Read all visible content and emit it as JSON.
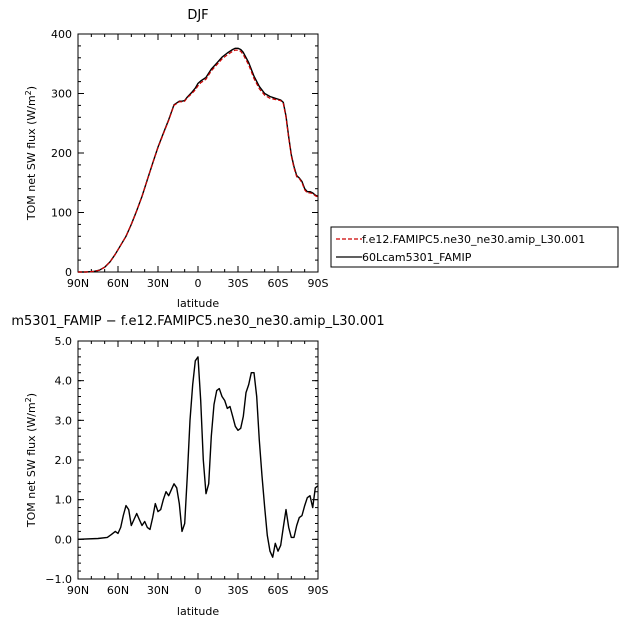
{
  "colors": {
    "series_red": "#cc0000",
    "series_black": "#000000"
  },
  "chart_data": [
    {
      "type": "line",
      "title": "DJF",
      "xlabel": "latitude",
      "ylabel": "TOM net SW flux (W/m²)",
      "xlim": [
        90,
        -90
      ],
      "ylim": [
        0,
        400
      ],
      "xticks": [
        90,
        60,
        30,
        0,
        -30,
        -60,
        -90
      ],
      "xtick_labels": [
        "90N",
        "60N",
        "30N",
        "0",
        "30S",
        "60S",
        "90S"
      ],
      "yticks": [
        0,
        100,
        200,
        300,
        400
      ],
      "ytick_labels": [
        "0",
        "100",
        "200",
        "300",
        "400"
      ],
      "grid": false,
      "legend_position": "right",
      "legend": [
        {
          "name": "f.e12.FAMIPC5.ne30_ne30.amip_L30.001",
          "style": "dashed",
          "color": "#cc0000"
        },
        {
          "name": "60Lcam5301_FAMIP",
          "style": "solid",
          "color": "#000000"
        }
      ],
      "series": [
        {
          "name": "f.e12.FAMIPC5.ne30_ne30.amip_L30.001",
          "x": [
            90,
            84,
            78,
            74,
            70,
            66,
            62,
            58,
            54,
            50,
            46,
            42,
            38,
            34,
            30,
            26,
            22,
            18,
            14,
            12,
            10,
            8,
            5,
            2,
            0,
            -2,
            -6,
            -10,
            -14,
            -18,
            -22,
            -26,
            -28,
            -30,
            -32,
            -34,
            -38,
            -42,
            -46,
            -50,
            -54,
            -58,
            -62,
            -64,
            -66,
            -68,
            -70,
            -72,
            -74,
            -76,
            -78,
            -80,
            -82,
            -84,
            -86,
            -88,
            -90
          ],
          "y": [
            0,
            0,
            1,
            3,
            8,
            17,
            30,
            45,
            60,
            80,
            103,
            127,
            155,
            183,
            209,
            232,
            255,
            280,
            286,
            286,
            287,
            293,
            299,
            306,
            313,
            318,
            324,
            338,
            348,
            358,
            365,
            371,
            373,
            373,
            371,
            365,
            348,
            325,
            308,
            297,
            292,
            290,
            288,
            283,
            260,
            225,
            195,
            175,
            160,
            157,
            150,
            138,
            133,
            133,
            132,
            128,
            126
          ]
        },
        {
          "name": "60Lcam5301_FAMIP",
          "x": [
            90,
            84,
            78,
            74,
            70,
            66,
            62,
            58,
            54,
            50,
            46,
            42,
            38,
            34,
            30,
            26,
            22,
            18,
            14,
            12,
            10,
            8,
            5,
            2,
            0,
            -2,
            -6,
            -10,
            -14,
            -18,
            -22,
            -26,
            -28,
            -30,
            -32,
            -34,
            -38,
            -42,
            -46,
            -50,
            -54,
            -58,
            -62,
            -64,
            -66,
            -68,
            -70,
            -72,
            -74,
            -76,
            -78,
            -80,
            -82,
            -84,
            -86,
            -88,
            -90
          ],
          "y": [
            0,
            0,
            1,
            3,
            8,
            17,
            30,
            45,
            60,
            80,
            103,
            127,
            155,
            183,
            210,
            233,
            256,
            281,
            287,
            287,
            288,
            294,
            301,
            309,
            317,
            321,
            327,
            341,
            351,
            361,
            368,
            374,
            376,
            376,
            374,
            369,
            352,
            329,
            312,
            300,
            295,
            292,
            289,
            285,
            262,
            227,
            197,
            177,
            162,
            158,
            152,
            140,
            135,
            135,
            133,
            129,
            127
          ]
        }
      ]
    },
    {
      "type": "line",
      "title": "m5301_FAMIP − f.e12.FAMIPC5.ne30_ne30.amip_L30.001",
      "xlabel": "latitude",
      "ylabel": "TOM net SW flux (W/m²)",
      "xlim": [
        90,
        -90
      ],
      "ylim": [
        -1,
        5
      ],
      "xticks": [
        90,
        60,
        30,
        0,
        -30,
        -60,
        -90
      ],
      "xtick_labels": [
        "90N",
        "60N",
        "30N",
        "0",
        "30S",
        "60S",
        "90S"
      ],
      "yticks": [
        -1,
        0,
        1,
        2,
        3,
        4,
        5
      ],
      "ytick_labels": [
        "−1.0",
        "0.0",
        "1.0",
        "2.0",
        "3.0",
        "4.0",
        "5.0"
      ],
      "grid": false,
      "series": [
        {
          "x": [
            90,
            75,
            68,
            65,
            62,
            60,
            58,
            56,
            54,
            52,
            50,
            48,
            46,
            44,
            42,
            40,
            38,
            36,
            34,
            32,
            30,
            28,
            26,
            24,
            22,
            20,
            18,
            16,
            14,
            12,
            10,
            8,
            6,
            4,
            2,
            0,
            -2,
            -4,
            -6,
            -8,
            -10,
            -12,
            -14,
            -16,
            -18,
            -20,
            -22,
            -24,
            -26,
            -28,
            -30,
            -32,
            -34,
            -36,
            -38,
            -40,
            -42,
            -44,
            -46,
            -48,
            -50,
            -52,
            -54,
            -56,
            -58,
            -60,
            -62,
            -64,
            -66,
            -68,
            -70,
            -72,
            -74,
            -76,
            -78,
            -80,
            -82,
            -84,
            -86,
            -88,
            -90
          ],
          "y": [
            0.0,
            0.02,
            0.05,
            0.12,
            0.2,
            0.15,
            0.3,
            0.6,
            0.85,
            0.75,
            0.35,
            0.5,
            0.65,
            0.5,
            0.35,
            0.45,
            0.3,
            0.25,
            0.55,
            0.9,
            0.7,
            0.75,
            1.0,
            1.2,
            1.1,
            1.25,
            1.4,
            1.3,
            0.9,
            0.2,
            0.4,
            1.6,
            3.0,
            3.9,
            4.5,
            4.6,
            3.5,
            2.0,
            1.15,
            1.4,
            2.6,
            3.4,
            3.75,
            3.8,
            3.6,
            3.5,
            3.3,
            3.35,
            3.1,
            2.85,
            2.75,
            2.8,
            3.1,
            3.7,
            3.9,
            4.2,
            4.2,
            3.6,
            2.5,
            1.6,
            0.8,
            0.1,
            -0.3,
            -0.45,
            -0.1,
            -0.3,
            -0.15,
            0.3,
            0.75,
            0.3,
            0.05,
            0.05,
            0.35,
            0.55,
            0.6,
            0.85,
            1.05,
            1.1,
            0.8,
            1.3,
            1.35
          ]
        }
      ]
    }
  ]
}
